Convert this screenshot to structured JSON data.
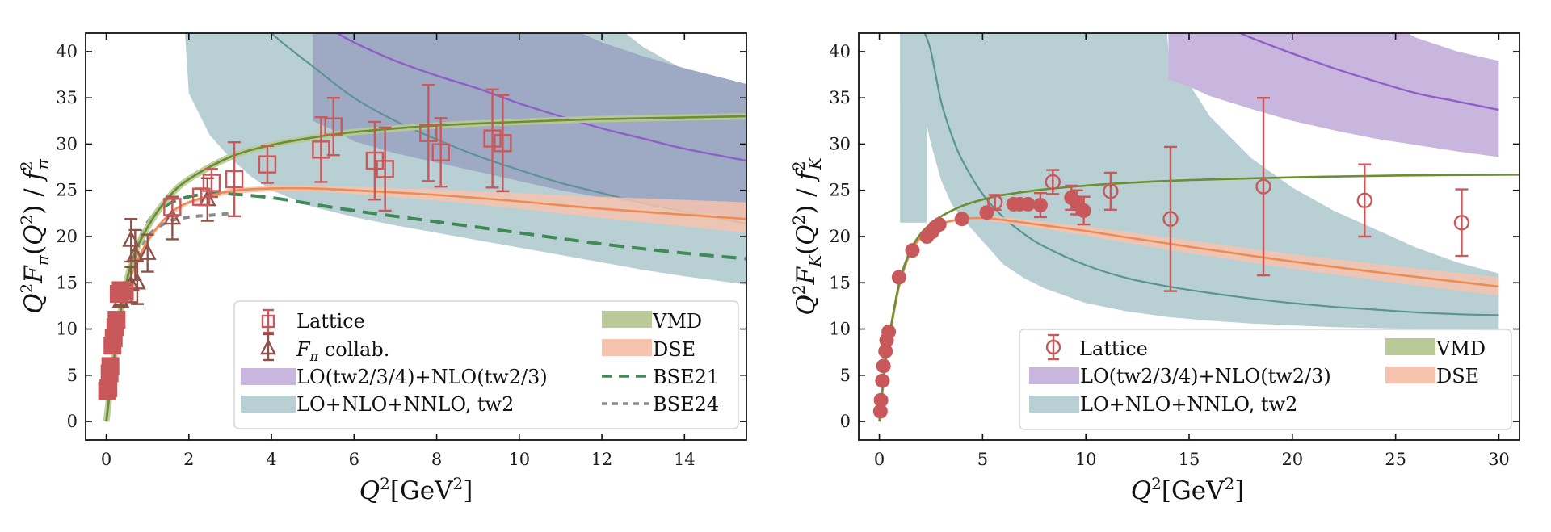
{
  "colors": {
    "lattice": "#c8585a",
    "fpi_collab": "#8f5248",
    "vmd_line": "#6a8f2e",
    "vmd_band": "#b9c998",
    "dse_line": "#f08a50",
    "dse_band": "#f6c3ae",
    "lo_nlo_band": "#c8b6de",
    "lo_nlo_line": "#8e5fc8",
    "nnlo_band": "#b8d0d4",
    "nnlo_line": "#5c9494",
    "overlap_band": "#9eaac4",
    "bse21": "#3f8a56",
    "bse24": "#8a8a8a"
  },
  "chart_data": [
    {
      "id": "pion",
      "type": "scatter",
      "title": "",
      "xlabel": "Q^2[GeV^2]",
      "ylabel": "Q^2 F_π(Q^2) / f_π^2",
      "xlim": [
        -0.5,
        15.5
      ],
      "ylim": [
        -2,
        42
      ],
      "xticks": [
        0,
        2,
        4,
        6,
        8,
        10,
        12,
        14
      ],
      "yticks": [
        0,
        5,
        10,
        15,
        20,
        25,
        30,
        35,
        40
      ],
      "grid": false,
      "legend_position": "lower-right",
      "legend": [
        {
          "label": "Lattice",
          "kind": "marker-square"
        },
        {
          "label": "F_π collab.",
          "kind": "marker-triangle"
        },
        {
          "label": "LO(tw2/3/4)+NLO(tw2/3)",
          "kind": "band-purple"
        },
        {
          "label": "LO+NLO+NNLO, tw2",
          "kind": "band-teal"
        },
        {
          "label": "VMD",
          "kind": "band-green"
        },
        {
          "label": "DSE",
          "kind": "band-orange"
        },
        {
          "label": "BSE21",
          "kind": "dashed-green"
        },
        {
          "label": "BSE24",
          "kind": "dotted-gray"
        }
      ],
      "lattice_points": [
        {
          "x": 0.02,
          "y": 3.3,
          "err": 0.6
        },
        {
          "x": 0.05,
          "y": 3.6,
          "err": 0.6
        },
        {
          "x": 0.08,
          "y": 5.2,
          "err": 0.6
        },
        {
          "x": 0.1,
          "y": 6.0,
          "err": 0.6
        },
        {
          "x": 0.15,
          "y": 8.2,
          "err": 0.6
        },
        {
          "x": 0.18,
          "y": 9.0,
          "err": 0.6
        },
        {
          "x": 0.22,
          "y": 10.2,
          "err": 0.6
        },
        {
          "x": 0.25,
          "y": 11.0,
          "err": 0.6
        },
        {
          "x": 0.3,
          "y": 13.8,
          "err": 0.6
        },
        {
          "x": 0.35,
          "y": 14.2,
          "err": 0.6
        },
        {
          "x": 0.45,
          "y": 14.0,
          "err": 0.6
        },
        {
          "x": 1.6,
          "y": 23.2,
          "err": 1.0
        },
        {
          "x": 2.3,
          "y": 24.3,
          "err": 0.9
        },
        {
          "x": 2.55,
          "y": 25.8,
          "err": 1.5
        },
        {
          "x": 3.1,
          "y": 26.2,
          "err": 4.0
        },
        {
          "x": 3.9,
          "y": 27.8,
          "err": 2.0
        },
        {
          "x": 5.2,
          "y": 29.4,
          "err": 3.5
        },
        {
          "x": 5.5,
          "y": 31.9,
          "err": 3.1
        },
        {
          "x": 6.5,
          "y": 28.2,
          "err": 4.2
        },
        {
          "x": 6.75,
          "y": 27.3,
          "err": 4.5
        },
        {
          "x": 7.8,
          "y": 31.2,
          "err": 5.2
        },
        {
          "x": 8.1,
          "y": 29.1,
          "err": 3.7
        },
        {
          "x": 9.35,
          "y": 30.6,
          "err": 5.3
        },
        {
          "x": 9.6,
          "y": 30.1,
          "err": 5.2
        }
      ],
      "fpi_collab_points": [
        {
          "x": 0.35,
          "y": 13.0,
          "err": 0.4
        },
        {
          "x": 0.6,
          "y": 14.8,
          "err": 1.9
        },
        {
          "x": 0.75,
          "y": 15.0,
          "err": 2.3
        },
        {
          "x": 0.6,
          "y": 19.6,
          "err": 2.3
        },
        {
          "x": 0.7,
          "y": 18.0,
          "err": 2.7
        },
        {
          "x": 1.0,
          "y": 18.2,
          "err": 2.0
        },
        {
          "x": 1.6,
          "y": 22.0,
          "err": 2.3
        },
        {
          "x": 2.45,
          "y": 24.0,
          "err": 2.3
        }
      ],
      "curves": {
        "vmd": {
          "x": [
            0,
            0.3,
            0.6,
            1,
            1.5,
            2,
            3,
            4,
            5,
            6,
            8,
            10,
            12,
            15.5
          ],
          "y": [
            0,
            10.5,
            17,
            21,
            24.2,
            26.2,
            28.6,
            29.9,
            30.7,
            31.3,
            32,
            32.4,
            32.7,
            33.0
          ],
          "band": 0.4
        },
        "dse": {
          "x": [
            0,
            0.3,
            0.6,
            1,
            1.5,
            2,
            3,
            4,
            5,
            6,
            8,
            10,
            12,
            15.5
          ],
          "y": [
            0,
            10,
            15.7,
            19.5,
            22.3,
            23.7,
            24.9,
            25.2,
            25.2,
            25.0,
            24.5,
            23.8,
            23.0,
            21.9
          ],
          "band_lo": [
            0,
            0.2,
            0.2,
            0.2,
            0.2,
            0.2,
            0.3,
            0.3,
            0.3,
            0.4,
            0.6,
            0.8,
            1.0,
            1.5
          ],
          "band_hi": [
            0,
            0.2,
            0.2,
            0.2,
            0.2,
            0.2,
            0.3,
            0.3,
            0.3,
            0.4,
            0.6,
            0.9,
            1.3,
            1.8
          ]
        },
        "bse21": {
          "x": [
            0,
            0.3,
            0.6,
            1,
            1.5,
            2,
            2.5,
            3,
            4,
            5,
            6,
            8,
            10,
            12,
            14,
            15.5
          ],
          "y": [
            0,
            10.5,
            17,
            21.5,
            23.5,
            24.3,
            24.6,
            24.6,
            24.2,
            23.5,
            22.8,
            21.6,
            20.4,
            19.2,
            18.2,
            17.6
          ]
        },
        "bse24": {
          "x": [
            0,
            0.3,
            0.6,
            1,
            1.5,
            2,
            2.5,
            3
          ],
          "y": [
            0,
            10.5,
            16.5,
            20.0,
            21.6,
            22.1,
            22.3,
            22.5
          ]
        },
        "lo_nlo": {
          "x": [
            5,
            5.5,
            6,
            7,
            8,
            9,
            10,
            11,
            12,
            13,
            14,
            15.5
          ],
          "y": [
            44,
            42.3,
            41.0,
            39.0,
            37.4,
            36.0,
            34.4,
            33.0,
            31.7,
            30.6,
            29.5,
            28.2
          ],
          "band_lo": [
            32.5,
            31.5,
            30.3,
            29.0,
            28.0,
            27.0,
            26.0,
            25.0,
            24.2,
            23.5,
            22.8,
            22.0
          ],
          "band_hi": [
            60,
            58,
            56,
            53,
            50,
            47,
            45,
            43,
            41,
            39.5,
            38.2,
            36.5
          ]
        },
        "nnlo": {
          "x": [
            1.5,
            2,
            2.5,
            3,
            3.5,
            4,
            5,
            6,
            7,
            8,
            9,
            10,
            11,
            12,
            13,
            14,
            15.5
          ],
          "y": [
            80,
            65,
            55,
            48,
            45,
            42,
            38.4,
            35.0,
            32.5,
            30.5,
            28.7,
            27.2,
            25.8,
            24.7,
            23.6,
            22.7,
            21.4
          ],
          "band_lo": [
            70,
            35.5,
            31,
            28.5,
            26.5,
            25.0,
            23.2,
            22.1,
            21.2,
            20.4,
            19.6,
            18.8,
            18.0,
            17.2,
            16.4,
            15.7,
            14.8
          ],
          "band_hi": [
            100,
            100,
            100,
            100,
            100,
            100,
            100,
            100,
            100,
            100,
            60,
            54,
            48,
            44,
            40.5,
            38,
            35.5
          ]
        }
      }
    },
    {
      "id": "kaon",
      "type": "scatter",
      "title": "",
      "xlabel": "Q^2[GeV^2]",
      "ylabel": "Q^2 F_K(Q^2) / f_K^2",
      "xlim": [
        -1,
        31
      ],
      "ylim": [
        -2,
        42
      ],
      "xticks": [
        0,
        5,
        10,
        15,
        20,
        25,
        30
      ],
      "yticks": [
        0,
        5,
        10,
        15,
        20,
        25,
        30,
        35,
        40
      ],
      "grid": false,
      "legend_position": "lower-right",
      "legend": [
        {
          "label": "Lattice",
          "kind": "marker-circle"
        },
        {
          "label": "LO(tw2/3/4)+NLO(tw2/3)",
          "kind": "band-purple"
        },
        {
          "label": "LO+NLO+NNLO, tw2",
          "kind": "band-teal"
        },
        {
          "label": "VMD",
          "kind": "band-green"
        },
        {
          "label": "DSE",
          "kind": "band-orange"
        }
      ],
      "lattice_filled": [
        {
          "x": 0.05,
          "y": 1.1,
          "err": 0
        },
        {
          "x": 0.08,
          "y": 2.3,
          "err": 0
        },
        {
          "x": 0.15,
          "y": 4.4,
          "err": 0
        },
        {
          "x": 0.2,
          "y": 6.0,
          "err": 0
        },
        {
          "x": 0.3,
          "y": 7.6,
          "err": 0
        },
        {
          "x": 0.35,
          "y": 8.8,
          "err": 0
        },
        {
          "x": 0.45,
          "y": 9.7,
          "err": 0
        },
        {
          "x": 0.95,
          "y": 15.6,
          "err": 0
        },
        {
          "x": 1.6,
          "y": 18.5,
          "err": 0
        },
        {
          "x": 2.3,
          "y": 20.0,
          "err": 0
        },
        {
          "x": 2.55,
          "y": 20.5,
          "err": 0
        },
        {
          "x": 2.7,
          "y": 21.0,
          "err": 0
        },
        {
          "x": 2.9,
          "y": 21.3,
          "err": 0
        },
        {
          "x": 4.0,
          "y": 21.9,
          "err": 0
        },
        {
          "x": 5.2,
          "y": 22.6,
          "err": 0
        },
        {
          "x": 6.5,
          "y": 23.5,
          "err": 0
        },
        {
          "x": 6.8,
          "y": 23.5,
          "err": 0
        },
        {
          "x": 7.2,
          "y": 23.5,
          "err": 0
        },
        {
          "x": 7.8,
          "y": 23.4,
          "err": 1.3
        },
        {
          "x": 9.3,
          "y": 24.2,
          "err": 1.3
        },
        {
          "x": 9.55,
          "y": 23.7,
          "err": 1.3
        },
        {
          "x": 9.9,
          "y": 22.8,
          "err": 1.5
        }
      ],
      "lattice_open": [
        {
          "x": 5.6,
          "y": 23.7,
          "err": 0.8
        },
        {
          "x": 8.4,
          "y": 25.9,
          "err": 1.3
        },
        {
          "x": 11.2,
          "y": 24.9,
          "err": 2.0
        },
        {
          "x": 14.1,
          "y": 21.9,
          "err": 7.8
        },
        {
          "x": 18.6,
          "y": 25.4,
          "err": 9.6
        },
        {
          "x": 23.5,
          "y": 23.9,
          "err": 3.9
        },
        {
          "x": 28.2,
          "y": 21.5,
          "err": 3.6
        }
      ],
      "curves": {
        "vmd": {
          "x": [
            0,
            0.3,
            0.6,
            1,
            1.5,
            2,
            2.5,
            3,
            4,
            5,
            6,
            8,
            10,
            12,
            15,
            20,
            25,
            31
          ],
          "y": [
            0,
            6.5,
            10.8,
            15.3,
            18.5,
            20.3,
            21.4,
            22.2,
            23.3,
            24.0,
            24.5,
            25.1,
            25.5,
            25.8,
            26.1,
            26.4,
            26.6,
            26.7
          ],
          "band": 0.2
        },
        "dse": {
          "x": [
            0,
            0.3,
            0.6,
            1,
            1.5,
            2,
            2.5,
            3,
            4,
            5,
            6,
            8,
            10,
            12,
            15,
            20,
            25,
            30
          ],
          "y": [
            0,
            6.3,
            10.5,
            15.0,
            18.2,
            19.9,
            20.8,
            21.4,
            21.9,
            22.0,
            21.8,
            21.2,
            20.6,
            19.9,
            18.9,
            17.3,
            15.9,
            14.6
          ],
          "band_lo": [
            0,
            0.1,
            0.1,
            0.1,
            0.1,
            0.1,
            0.1,
            0.1,
            0.1,
            0.2,
            0.3,
            0.4,
            0.5,
            0.6,
            0.7,
            0.8,
            0.9,
            1.0
          ],
          "band_hi": [
            0,
            0.1,
            0.1,
            0.1,
            0.1,
            0.1,
            0.1,
            0.1,
            0.1,
            0.2,
            0.3,
            0.4,
            0.5,
            0.6,
            0.7,
            0.8,
            0.9,
            1.0
          ]
        },
        "lo_nlo": {
          "x": [
            14,
            15,
            16,
            18,
            20,
            22,
            24,
            26,
            28,
            30
          ],
          "y": [
            45,
            44.5,
            43.5,
            41.5,
            39.8,
            38.2,
            36.8,
            35.5,
            34.6,
            33.7
          ],
          "band_lo": [
            37,
            36.2,
            35.2,
            33.8,
            32.5,
            31.5,
            30.6,
            29.9,
            29.2,
            28.6
          ],
          "band_hi": [
            60,
            58,
            56,
            54,
            52,
            47,
            44,
            41.5,
            40,
            39
          ]
        },
        "nnlo": {
          "x": [
            2.2,
            2.5,
            3,
            3.5,
            4,
            5,
            6,
            7,
            8,
            10,
            12,
            14,
            16,
            18,
            20,
            22,
            24,
            26,
            28,
            30
          ],
          "y": [
            42,
            40,
            34.5,
            31,
            28.3,
            24.6,
            22.1,
            20.3,
            18.9,
            16.9,
            15.5,
            14.6,
            13.9,
            13.3,
            12.8,
            12.4,
            12.1,
            11.8,
            11.6,
            11.5
          ],
          "band_lo": [
            33,
            30,
            26,
            23.5,
            22.0,
            19.5,
            17.0,
            15.5,
            14.4,
            12.8,
            11.9,
            11.3,
            10.9,
            10.6,
            10.4,
            10.2,
            10.1,
            10.0,
            9.9,
            9.8
          ],
          "band_hi": [
            100,
            100,
            100,
            100,
            100,
            100,
            100,
            100,
            100,
            100,
            100,
            40,
            33,
            28.5,
            25.3,
            22.8,
            20.8,
            18.8,
            17.2,
            16.0
          ]
        },
        "nnlo_band_left": {
          "x": [
            1.0,
            1.0,
            1.3,
            1.8,
            2.2
          ],
          "y": [
            42,
            35,
            28,
            22.5,
            21.5
          ]
        }
      }
    }
  ],
  "panels": [
    {
      "ylabel_main": "Q",
      "ylabel_text": "Q²F_π(Q²) / f_π²",
      "xlabel_text": "Q²[GeV²]",
      "xticks": [
        "0",
        "2",
        "4",
        "6",
        "8",
        "10",
        "12",
        "14"
      ],
      "yticks": [
        "0",
        "5",
        "10",
        "15",
        "20",
        "25",
        "30",
        "35",
        "40"
      ],
      "legend_left": [
        "Lattice",
        "F_π collab.",
        "LO(tw2/3/4)+NLO(tw2/3)",
        "LO+NLO+NNLO, tw2"
      ],
      "legend_right": [
        "VMD",
        "DSE",
        "BSE21",
        "BSE24"
      ]
    },
    {
      "ylabel_text": "Q²F_K(Q²) / f_K²",
      "xlabel_text": "Q²[GeV²]",
      "xticks": [
        "0",
        "5",
        "10",
        "15",
        "20",
        "25",
        "30"
      ],
      "yticks": [
        "0",
        "5",
        "10",
        "15",
        "20",
        "25",
        "30",
        "35",
        "40"
      ],
      "legend_left": [
        "Lattice",
        "LO(tw2/3/4)+NLO(tw2/3)",
        "LO+NLO+NNLO, tw2"
      ],
      "legend_right": [
        "VMD",
        "DSE"
      ]
    }
  ]
}
